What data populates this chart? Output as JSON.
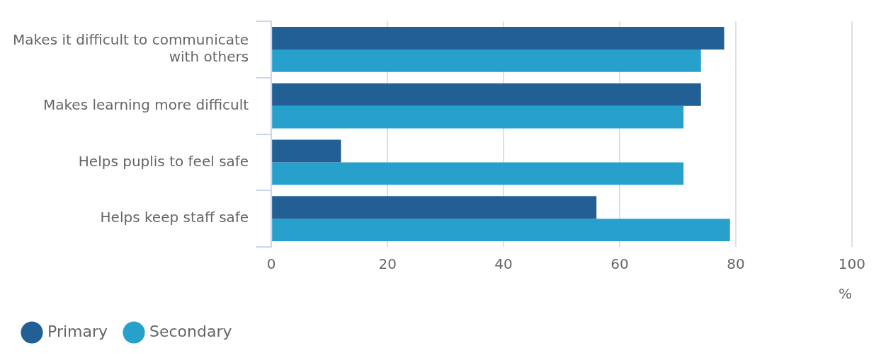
{
  "chart_data": {
    "type": "bar",
    "orientation": "horizontal",
    "categories": [
      "Makes it difficult to communicate with others",
      "Makes learning more difficult",
      "Helps puplis to feel safe",
      "Helps keep staff safe"
    ],
    "series": [
      {
        "name": "Primary",
        "color": "#215f94",
        "values": [
          78,
          74,
          12,
          56
        ]
      },
      {
        "name": "Secondary",
        "color": "#28a0cc",
        "values": [
          74,
          71,
          71,
          79
        ]
      }
    ],
    "xlabel": "%",
    "xlim": [
      0,
      100
    ],
    "xticks": [
      0,
      20,
      40,
      60,
      80,
      100
    ],
    "grid": "x",
    "legend": "bottom left"
  }
}
